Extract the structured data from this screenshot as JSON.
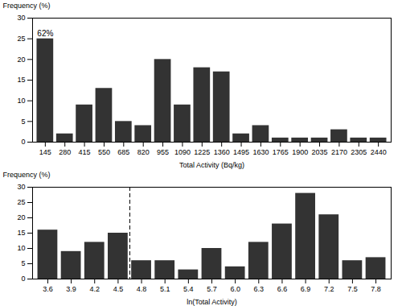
{
  "chart_data": [
    {
      "type": "bar",
      "x": [
        145,
        280,
        415,
        550,
        685,
        820,
        955,
        1090,
        1225,
        1360,
        1495,
        1630,
        1765,
        1900,
        2035,
        2170,
        2305,
        2440
      ],
      "values": [
        25,
        2,
        9,
        13,
        5,
        4,
        20,
        9,
        18,
        17,
        2,
        4,
        1,
        1,
        1,
        3,
        1,
        1
      ],
      "color": "#333333",
      "xlim": [
        57.25,
        2527.75
      ],
      "xticks": [
        145,
        280,
        415,
        550,
        685,
        820,
        955,
        1090,
        1225,
        1360,
        1495,
        1630,
        1765,
        1900,
        2035,
        2170,
        2305,
        2440
      ],
      "ylim": [
        0,
        30
      ],
      "yticks": [
        0,
        5,
        10,
        15,
        20,
        25,
        30
      ],
      "xlabel": "Total Activity (Bq/kg)",
      "ylabel": "Frequency (%)",
      "annotations": [
        {
          "text": "62%",
          "x": 145,
          "y": 26.2
        }
      ]
    },
    {
      "type": "bar",
      "x": [
        3.6,
        3.9,
        4.2,
        4.5,
        4.8,
        5.1,
        5.4,
        5.7,
        6.0,
        6.3,
        6.6,
        6.9,
        7.2,
        7.5,
        7.8
      ],
      "values": [
        16,
        9,
        12,
        15,
        6,
        6,
        3,
        10,
        4,
        12,
        18,
        28,
        21,
        6,
        7
      ],
      "color": "#333333",
      "xlim": [
        3.405,
        7.995
      ],
      "xticks": [
        3.6,
        3.9,
        4.2,
        4.5,
        4.8,
        5.1,
        5.4,
        5.7,
        {
          "value": 6.0,
          "label": "6.0"
        },
        6.3,
        6.6,
        6.9,
        7.2,
        7.5,
        7.8
      ],
      "ylim": [
        0,
        30
      ],
      "yticks": [
        0,
        5,
        10,
        15,
        20,
        25,
        30
      ],
      "xlabel": "ln(Total Activity)",
      "ylabel": "Frequency (%)",
      "vlines": [
        {
          "x": 4.65,
          "line_style": "dashed"
        }
      ]
    }
  ]
}
